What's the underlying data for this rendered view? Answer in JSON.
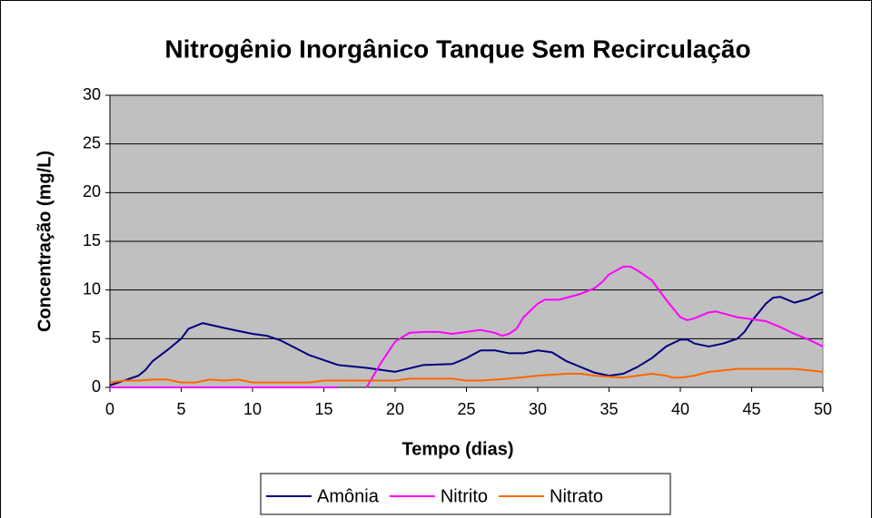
{
  "chart_data": {
    "type": "line",
    "title": "Nitrogênio Inorgânico Tanque Sem Recirculação",
    "x_label": "Tempo (dias)",
    "y_label": "Concentração (mg/L)",
    "xlim": [
      0,
      50
    ],
    "xticks": [
      0,
      5,
      10,
      15,
      20,
      25,
      30,
      35,
      40,
      45,
      50
    ],
    "ylim": [
      0,
      30
    ],
    "yticks": [
      0,
      5,
      10,
      15,
      20,
      25,
      30
    ],
    "grid": true,
    "legend": "bottom",
    "series": [
      {
        "name": "Amônia",
        "color": "#000080",
        "x": [
          0,
          1,
          2,
          2.5,
          3,
          4,
          5,
          5.5,
          6.5,
          8,
          10,
          11,
          12,
          14,
          16,
          18,
          20,
          22,
          24,
          25,
          26,
          27,
          28,
          29,
          30,
          31,
          32,
          34,
          35,
          36,
          37,
          38,
          39,
          40,
          40.5,
          41,
          42,
          43,
          44,
          44.5,
          45,
          46,
          46.5,
          47,
          48,
          49,
          50
        ],
        "values": [
          0.2,
          0.7,
          1.2,
          1.8,
          2.7,
          3.8,
          5,
          6,
          6.6,
          6.1,
          5.5,
          5.3,
          4.8,
          3.3,
          2.3,
          2.0,
          1.6,
          2.3,
          2.4,
          3.0,
          3.8,
          3.8,
          3.5,
          3.5,
          3.8,
          3.6,
          2.7,
          1.5,
          1.2,
          1.4,
          2.1,
          3.0,
          4.2,
          4.9,
          4.9,
          4.5,
          4.2,
          4.5,
          5,
          5.7,
          6.8,
          8.6,
          9.2,
          9.3,
          8.7,
          9.1,
          9.8
        ]
      },
      {
        "name": "Nitrito",
        "color": "#ff00ff",
        "x": [
          0,
          5,
          10,
          15,
          16,
          17,
          18,
          19,
          20,
          21,
          22,
          23,
          24,
          25,
          26,
          27,
          27.5,
          28,
          28.5,
          29,
          30,
          30.5,
          31.5,
          32,
          33,
          34,
          34.5,
          35,
          35.5,
          36,
          36.5,
          37,
          38,
          39,
          40,
          40.5,
          41,
          42,
          42.5,
          43,
          44,
          45,
          46,
          47,
          48,
          49,
          50
        ],
        "values": [
          0,
          0,
          0,
          0,
          0,
          null,
          0,
          2.5,
          4.7,
          5.6,
          5.7,
          5.7,
          5.5,
          5.7,
          5.9,
          5.6,
          5.3,
          5.5,
          6,
          7.2,
          8.6,
          9,
          9,
          9.2,
          9.6,
          10.2,
          10.8,
          11.6,
          12,
          12.4,
          12.4,
          12,
          11,
          9,
          7.2,
          6.9,
          7.1,
          7.7,
          7.8,
          7.6,
          7.2,
          7,
          6.8,
          6.2,
          5.5,
          4.9,
          4.2
        ]
      },
      {
        "name": "Nitrato",
        "color": "#ff6600",
        "x": [
          0,
          1,
          2,
          3,
          4,
          5,
          6,
          7,
          8,
          9,
          10,
          11,
          12,
          14,
          15,
          17,
          19,
          20,
          21,
          22,
          24,
          25,
          26,
          28,
          30,
          32,
          33,
          34,
          35,
          36,
          37,
          38,
          39,
          39.5,
          40,
          41,
          42,
          44,
          46,
          48,
          50
        ],
        "values": [
          0.5,
          0.7,
          0.7,
          0.8,
          0.8,
          0.5,
          0.5,
          0.8,
          0.7,
          0.8,
          0.5,
          0.5,
          0.5,
          0.5,
          0.7,
          0.7,
          0.7,
          0.7,
          0.9,
          0.9,
          0.9,
          0.7,
          0.7,
          0.9,
          1.2,
          1.4,
          1.4,
          1.2,
          1.1,
          1.0,
          1.2,
          1.4,
          1.2,
          1.0,
          1.0,
          1.2,
          1.6,
          1.9,
          1.9,
          1.9,
          1.6
        ]
      }
    ]
  }
}
